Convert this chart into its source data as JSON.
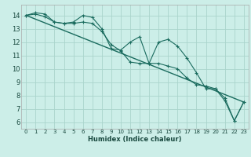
{
  "xlabel": "Humidex (Indice chaleur)",
  "background_color": "#cceee8",
  "grid_color": "#aad4cc",
  "line_color": "#1a6b5e",
  "xlim": [
    -0.5,
    23.5
  ],
  "ylim": [
    5.5,
    14.8
  ],
  "xticks": [
    0,
    1,
    2,
    3,
    4,
    5,
    6,
    7,
    8,
    9,
    10,
    11,
    12,
    13,
    14,
    15,
    16,
    17,
    18,
    19,
    20,
    21,
    22,
    23
  ],
  "yticks": [
    6,
    7,
    8,
    9,
    10,
    11,
    12,
    13,
    14
  ],
  "series1_y": [
    14.0,
    14.2,
    14.1,
    13.5,
    13.4,
    13.5,
    14.0,
    13.85,
    13.0,
    11.5,
    11.4,
    12.0,
    12.4,
    10.4,
    12.0,
    12.2,
    11.7,
    10.8,
    9.7,
    8.5,
    8.5,
    7.8,
    6.1,
    7.5
  ],
  "series2_y": [
    14.0,
    14.1,
    13.9,
    13.5,
    13.4,
    13.4,
    13.5,
    13.4,
    12.8,
    11.8,
    11.35,
    10.5,
    10.4,
    10.4,
    10.4,
    10.2,
    10.0,
    9.3,
    8.8,
    8.7,
    8.5,
    7.6,
    6.1,
    7.5
  ],
  "series3_y": [
    14.0,
    7.5
  ],
  "series3_x": [
    0,
    23
  ]
}
